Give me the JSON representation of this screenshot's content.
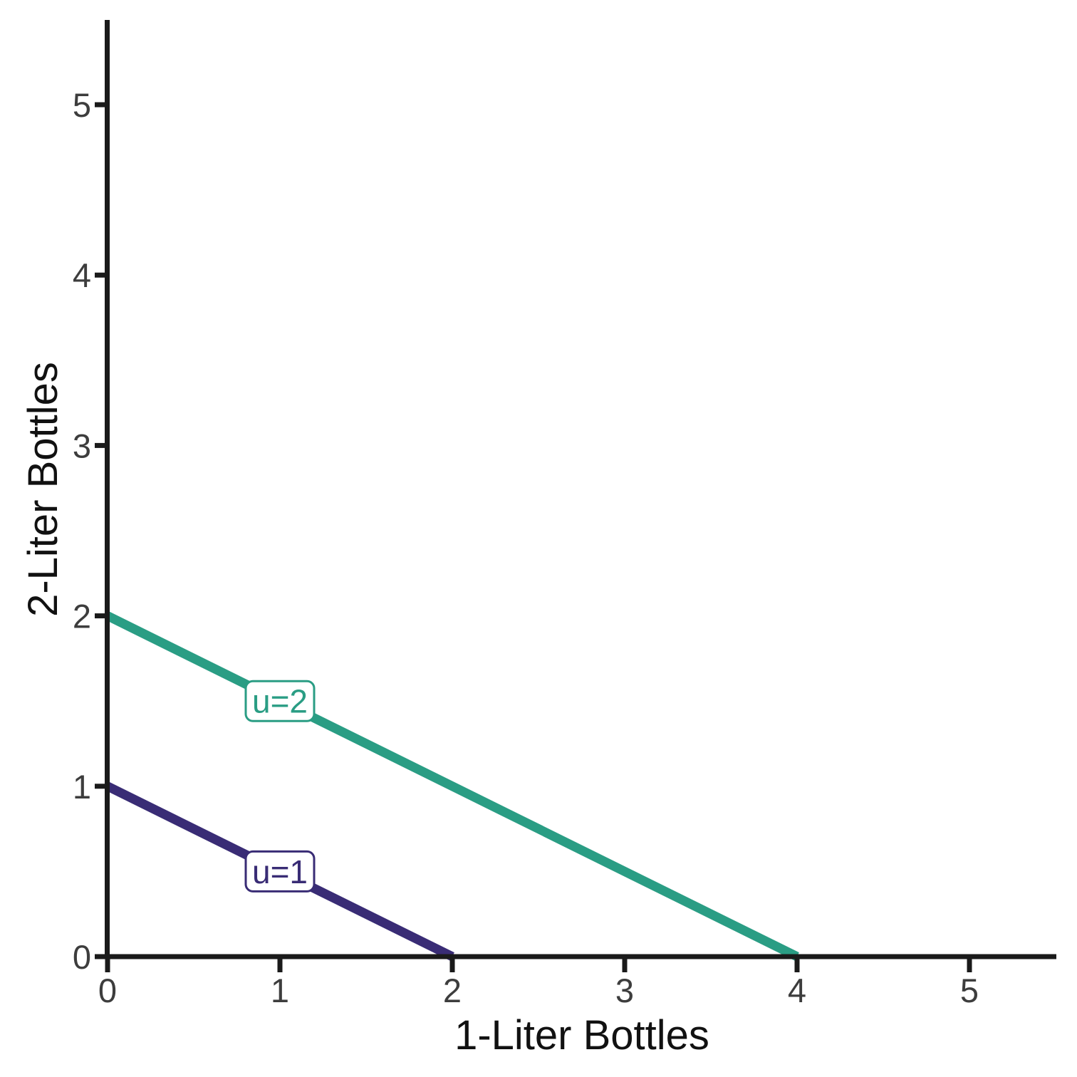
{
  "chart_data": {
    "type": "line",
    "title": "",
    "xlabel": "1-Liter Bottles",
    "ylabel": "2-Liter Bottles",
    "xlim": [
      0,
      5.5
    ],
    "ylim": [
      0,
      5.5
    ],
    "xticks": [
      0,
      1,
      2,
      3,
      4,
      5
    ],
    "yticks": [
      0,
      1,
      2,
      3,
      4,
      5
    ],
    "grid": false,
    "legend_position": "none",
    "axis_color": "#1a1a1a",
    "tick_label_color": "#3d3d3d",
    "series": [
      {
        "name": "indifference-curve-u2",
        "label": "u=2",
        "color": "#2a9d84",
        "points": [
          {
            "x": 0,
            "y": 2
          },
          {
            "x": 4,
            "y": 0
          }
        ],
        "label_at": {
          "x": 1,
          "y": 1.5
        }
      },
      {
        "name": "indifference-curve-u1",
        "label": "u=1",
        "color": "#392c75",
        "points": [
          {
            "x": 0,
            "y": 1
          },
          {
            "x": 2,
            "y": 0
          }
        ],
        "label_at": {
          "x": 1,
          "y": 0.5
        }
      }
    ]
  }
}
